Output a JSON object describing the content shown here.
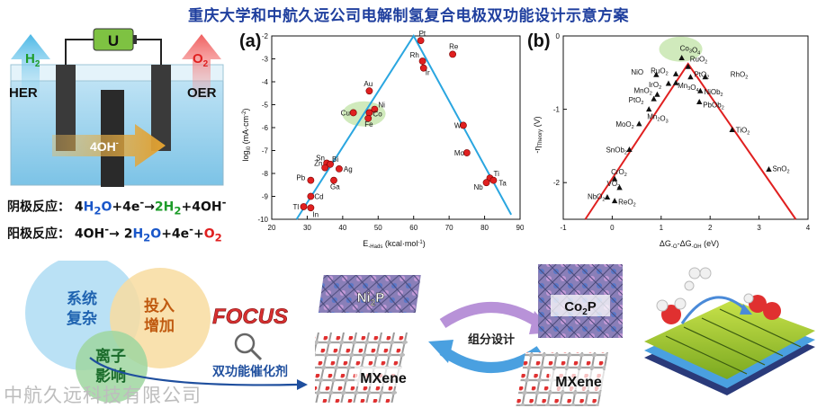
{
  "title": "重庆大学和中航久远公司电解制氢复合电极双功能设计示意方案",
  "cell": {
    "h2_label": "H",
    "h2_sub": "2",
    "o2_label": "O",
    "o2_sub": "2",
    "her_label": "HER",
    "oer_label": "OER",
    "battery_label": "U",
    "arrow_label": "4OH",
    "arrow_sup": "-"
  },
  "equations": {
    "cathode": {
      "label": "阴极反应：",
      "coef1": "4",
      "h2o": "H",
      "h2o_sub": "2",
      "h2o_o": "O",
      "plus_e": "+4e",
      "e_sup": "-",
      "arrow": "→",
      "h2_coef": "2H",
      "h2_sub": "2",
      "oh": "+4OH",
      "oh_sup": "-"
    },
    "anode": {
      "label": "阳极反应：",
      "oh": "4OH",
      "oh_sup": "-",
      "arrow": "→",
      "h2o_coef": "2",
      "h2o": "H",
      "h2o_sub": "2",
      "h2o_o": "O",
      "plus_e": "+4e",
      "e_sup": "-",
      "plus": "+",
      "o2": "O",
      "o2_sub": "2"
    }
  },
  "venn": {
    "circle1": [
      "系统",
      "复杂"
    ],
    "circle2": [
      "投入",
      "增加"
    ],
    "circle3": [
      "离子",
      "影响"
    ],
    "arrow_label": "双功能催化剂",
    "focus": "FOCUS"
  },
  "materials": {
    "ni2p": "Ni",
    "ni2p_sub": "2",
    "ni2p_p": "P",
    "mxene1": "MXene",
    "co2p": "Co",
    "co2p_sub": "2",
    "co2p_p": "P",
    "mxene2": "MXene",
    "design_label": "组分设计"
  },
  "watermark": "中航久远科技有限公司",
  "colors": {
    "title": "#1f3f9e",
    "volcano_a": "#2aa6e0",
    "volcano_b": "#e02020",
    "highlight": "#c8e6b0"
  },
  "chart_data": [
    {
      "panel_label": "(a)",
      "type": "scatter",
      "title": "",
      "xlabel": "E",
      "xlabel_sub": "-Hads",
      "xlabel_unit": " (kcal·mol",
      "xlabel_sup": "-1",
      "xlabel_end": ")",
      "ylabel": "log",
      "ylabel_sub": "i0",
      "ylabel_unit": " (mA·cm",
      "ylabel_sup": "-2",
      "ylabel_end": ")",
      "xlim": [
        20,
        90
      ],
      "ylim": [
        -10,
        -2
      ],
      "xticks": [
        "20",
        "30",
        "40",
        "50",
        "60",
        "70",
        "80",
        "90"
      ],
      "yticks": [
        "-2",
        "-3",
        "-4",
        "-5",
        "-6",
        "-7",
        "-8",
        "-9",
        "-10"
      ],
      "volcano_line": {
        "x": [
          27,
          60,
          87.5
        ],
        "y": [
          -10,
          -2,
          -9.8
        ]
      },
      "highlight_center": [
        46,
        -5.4
      ],
      "points": [
        {
          "label": "Pt",
          "x": 62,
          "y": -2.2
        },
        {
          "label": "Re",
          "x": 71,
          "y": -2.8
        },
        {
          "label": "Rh",
          "x": 62.5,
          "y": -3.1
        },
        {
          "label": "Ir",
          "x": 62.8,
          "y": -3.4
        },
        {
          "label": "Au",
          "x": 47.5,
          "y": -4.4
        },
        {
          "label": "Ni",
          "x": 49,
          "y": -5.2
        },
        {
          "label": "Cu",
          "x": 43,
          "y": -5.35
        },
        {
          "label": "Co",
          "x": 47.5,
          "y": -5.35
        },
        {
          "label": "Fe",
          "x": 47.2,
          "y": -5.6
        },
        {
          "label": "W",
          "x": 74,
          "y": -5.9
        },
        {
          "label": "Mo",
          "x": 75,
          "y": -7.1
        },
        {
          "label": "Sn",
          "x": 35.5,
          "y": -7.55
        },
        {
          "label": "Bi",
          "x": 36.5,
          "y": -7.6
        },
        {
          "label": "Zn",
          "x": 35,
          "y": -7.75
        },
        {
          "label": "Ag",
          "x": 39,
          "y": -7.8
        },
        {
          "label": "Pb",
          "x": 31,
          "y": -8.3
        },
        {
          "label": "Ga",
          "x": 37.5,
          "y": -8.3
        },
        {
          "label": "Ti",
          "x": 81.5,
          "y": -8.2
        },
        {
          "label": "Ta",
          "x": 82.5,
          "y": -8.3
        },
        {
          "label": "Nb",
          "x": 80.5,
          "y": -8.4
        },
        {
          "label": "Cd",
          "x": 31,
          "y": -9.0
        },
        {
          "label": "Tl",
          "x": 29,
          "y": -9.45
        },
        {
          "label": "In",
          "x": 31,
          "y": -9.5
        }
      ]
    },
    {
      "panel_label": "(b)",
      "type": "scatter",
      "title": "",
      "xlabel": "ΔG",
      "xlabel_sub1": "-O",
      "xlabel_mid": "-ΔG",
      "xlabel_sub2": "-OH",
      "xlabel_unit": " (eV)",
      "ylabel": "-η",
      "ylabel_sub": "Theory",
      "ylabel_unit": " (V)",
      "xlim": [
        -1,
        4
      ],
      "ylim": [
        -2.5,
        0
      ],
      "xticks": [
        "-1",
        "0",
        "1",
        "2",
        "3",
        "4"
      ],
      "yticks": [
        "0",
        "-1",
        "-2"
      ],
      "volcano_line": {
        "x": [
          -0.55,
          1.55,
          3.75
        ],
        "y": [
          -2.5,
          -0.38,
          -2.5
        ]
      },
      "highlight_center": [
        1.4,
        -0.18
      ],
      "points": [
        {
          "label": "Co3O4",
          "x": 1.42,
          "y": -0.3
        },
        {
          "label": "RuO2",
          "x": 1.55,
          "y": -0.42
        },
        {
          "label": "NiO",
          "x": 0.9,
          "y": -0.53
        },
        {
          "label": "RuO2'",
          "x": 1.3,
          "y": -0.52
        },
        {
          "label": "PtO2",
          "x": 1.6,
          "y": -0.56
        },
        {
          "label": "RhO2",
          "x": 1.9,
          "y": -0.56
        },
        {
          "label": "IrO2",
          "x": 1.15,
          "y": -0.65
        },
        {
          "label": "Mn3O4",
          "x": 1.3,
          "y": -0.64
        },
        {
          "label": "NiOb2",
          "x": 1.8,
          "y": -0.75
        },
        {
          "label": "MnO2",
          "x": 0.92,
          "y": -0.8
        },
        {
          "label": "PtO2'",
          "x": 0.85,
          "y": -0.86
        },
        {
          "label": "PbOb2",
          "x": 1.78,
          "y": -0.9
        },
        {
          "label": "Mn2O3",
          "x": 0.75,
          "y": -1.0
        },
        {
          "label": "MoO2",
          "x": 0.55,
          "y": -1.2
        },
        {
          "label": "TiO2",
          "x": 2.45,
          "y": -1.28
        },
        {
          "label": "SnOb2",
          "x": 0.35,
          "y": -1.55
        },
        {
          "label": "SnO2",
          "x": 3.2,
          "y": -1.82
        },
        {
          "label": "CrO2",
          "x": 0.05,
          "y": -1.95
        },
        {
          "label": "VO2",
          "x": 0.15,
          "y": -2.07
        },
        {
          "label": "NbO2",
          "x": -0.1,
          "y": -2.2
        },
        {
          "label": "ReO2",
          "x": 0.05,
          "y": -2.25
        }
      ]
    }
  ]
}
